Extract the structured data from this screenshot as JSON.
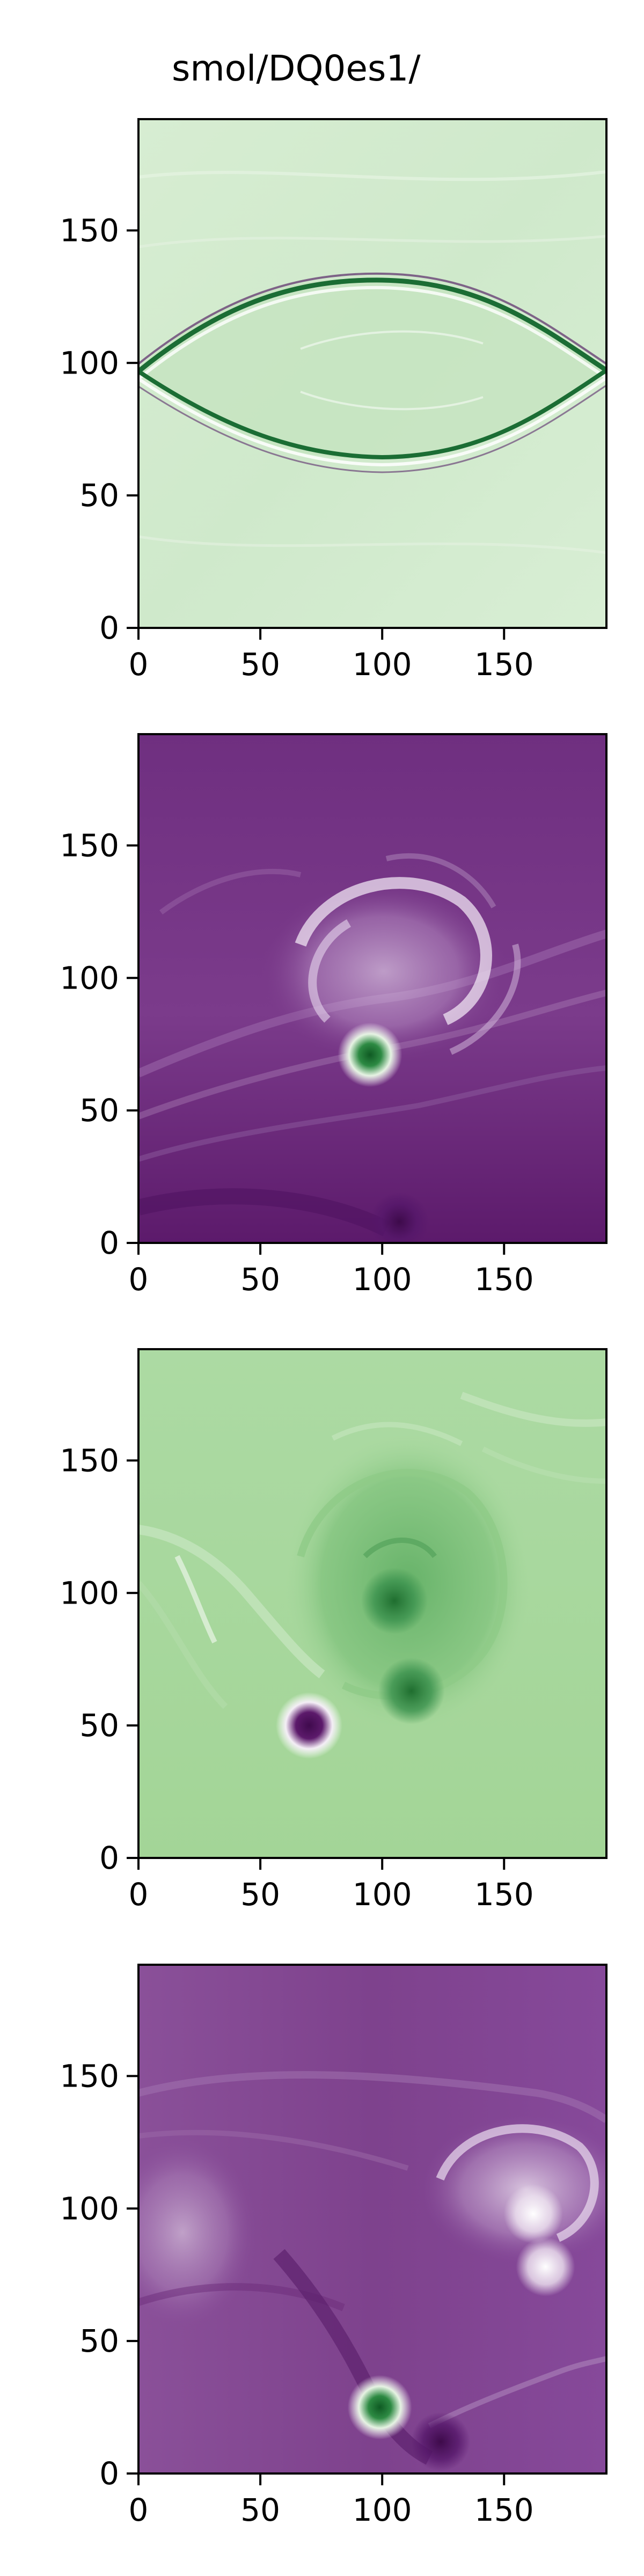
{
  "figure": {
    "title": "smol/DQ0es1/"
  },
  "chart_data": [
    {
      "type": "heatmap",
      "title": "",
      "xlabel": "",
      "ylabel": "",
      "xlim": [
        0,
        192
      ],
      "ylim": [
        0,
        192
      ],
      "x_ticks": [
        0,
        50,
        100,
        150
      ],
      "y_ticks": [
        0,
        50,
        100,
        150
      ],
      "x_tick_labels": [
        "0",
        "50",
        "100",
        "150"
      ],
      "y_tick_labels": [
        "0",
        "50",
        "100",
        "150"
      ],
      "colormap": "PRGn",
      "background_color": "#d6ecd1",
      "features": [
        {
          "kind": "front",
          "x0": 0,
          "y0": 97,
          "x1": 192,
          "y1": 97,
          "peak_y": 130,
          "trough_y": 62,
          "crest_x": 100
        }
      ]
    },
    {
      "type": "heatmap",
      "title": "",
      "xlabel": "",
      "ylabel": "",
      "xlim": [
        0,
        192
      ],
      "ylim": [
        0,
        192
      ],
      "x_ticks": [
        0,
        50,
        100,
        150
      ],
      "y_ticks": [
        0,
        50,
        100,
        150
      ],
      "x_tick_labels": [
        "0",
        "50",
        "100",
        "150"
      ],
      "y_tick_labels": [
        "0",
        "50",
        "100",
        "150"
      ],
      "colormap": "PRGn",
      "background_color": "#743484",
      "features": [
        {
          "kind": "vortex",
          "x": 95,
          "y": 71,
          "sign": "positive"
        },
        {
          "kind": "vortex",
          "x": 107,
          "y": 8,
          "sign": "negative"
        }
      ]
    },
    {
      "type": "heatmap",
      "title": "",
      "xlabel": "",
      "ylabel": "",
      "xlim": [
        0,
        192
      ],
      "ylim": [
        0,
        192
      ],
      "x_ticks": [
        0,
        50,
        100,
        150
      ],
      "y_ticks": [
        0,
        50,
        100,
        150
      ],
      "x_tick_labels": [
        "0",
        "50",
        "100",
        "150"
      ],
      "y_tick_labels": [
        "0",
        "50",
        "100",
        "150"
      ],
      "colormap": "PRGn",
      "background_color": "#a5d79b",
      "features": [
        {
          "kind": "vortex",
          "x": 105,
          "y": 97,
          "sign": "positive"
        },
        {
          "kind": "vortex",
          "x": 112,
          "y": 63,
          "sign": "positive"
        },
        {
          "kind": "vortex",
          "x": 70,
          "y": 50,
          "sign": "negative"
        }
      ]
    },
    {
      "type": "heatmap",
      "title": "",
      "xlabel": "",
      "ylabel": "",
      "xlim": [
        0,
        192
      ],
      "ylim": [
        0,
        192
      ],
      "x_ticks": [
        0,
        50,
        100,
        150
      ],
      "y_ticks": [
        0,
        50,
        100,
        150
      ],
      "x_tick_labels": [
        "0",
        "50",
        "100",
        "150"
      ],
      "y_tick_labels": [
        "0",
        "50",
        "100",
        "150"
      ],
      "colormap": "PRGn",
      "background_color": "#82478f",
      "features": [
        {
          "kind": "vortex",
          "x": 99,
          "y": 25,
          "sign": "positive"
        },
        {
          "kind": "vortex",
          "x": 124,
          "y": 12,
          "sign": "negative"
        },
        {
          "kind": "vortex",
          "x": 162,
          "y": 98,
          "sign": "light"
        },
        {
          "kind": "vortex",
          "x": 167,
          "y": 78,
          "sign": "light"
        }
      ]
    }
  ]
}
